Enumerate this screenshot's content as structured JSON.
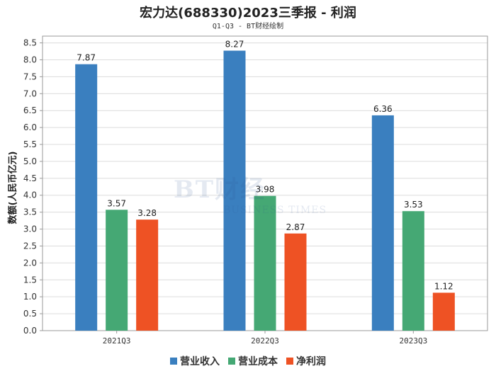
{
  "chart_data": {
    "type": "bar",
    "title": "宏力达(688330)2023三季报 - 利润",
    "subtitle": "Q1-Q3 - BT财经绘制",
    "ylabel": "数额(人民币亿元)",
    "xlabel": "",
    "ylim": [
      0,
      8.7
    ],
    "yticks": [
      "0.0",
      "0.5",
      "1.0",
      "1.5",
      "2.0",
      "2.5",
      "3.0",
      "3.5",
      "4.0",
      "4.5",
      "5.0",
      "5.5",
      "6.0",
      "6.5",
      "7.0",
      "7.5",
      "8.0",
      "8.5"
    ],
    "categories": [
      "2021Q3",
      "2022Q3",
      "2023Q3"
    ],
    "series": [
      {
        "name": "营业收入",
        "color": "#3a7fbf",
        "values": [
          7.87,
          8.27,
          6.36
        ]
      },
      {
        "name": "营业成本",
        "color": "#45a874",
        "values": [
          3.57,
          3.98,
          3.53
        ]
      },
      {
        "name": "净利润",
        "color": "#ee5224",
        "values": [
          3.28,
          2.87,
          1.12
        ]
      }
    ],
    "grid": true,
    "legend_position": "bottom"
  },
  "watermark": {
    "brand": "BT财经",
    "tagline": "BUSINESS TIMES"
  }
}
